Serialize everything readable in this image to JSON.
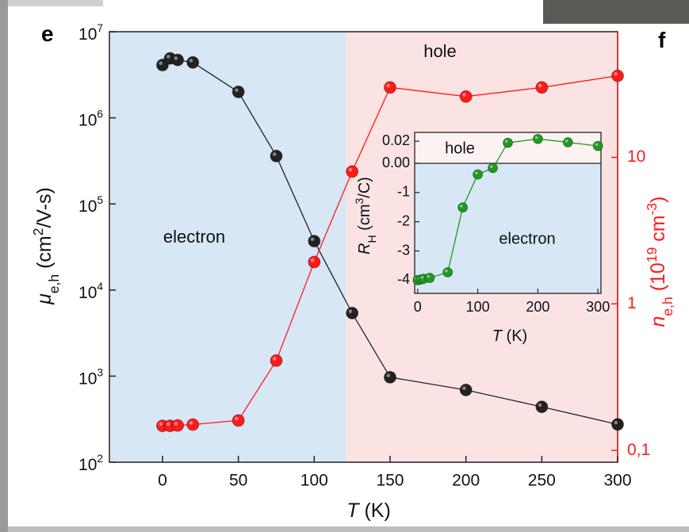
{
  "panel_left": "e",
  "panel_right": "f",
  "chart_data": [
    {
      "type": "line",
      "xlabel": [
        {
          "text": "T",
          "style": "italic"
        },
        {
          "text": " (K)",
          "style": "normal"
        }
      ],
      "ylabel": [
        {
          "text": "μ",
          "style": "italic"
        },
        {
          "text": "e,h",
          "style": "sub"
        },
        {
          "text": " (cm",
          "style": "normal"
        },
        {
          "text": "2",
          "style": "sup"
        },
        {
          "text": "/V-s)",
          "style": "normal"
        }
      ],
      "y2label": [
        {
          "text": "n",
          "style": "italic"
        },
        {
          "text": "e,h",
          "style": "sub"
        },
        {
          "text": " (10",
          "style": "normal"
        },
        {
          "text": "19",
          "style": "sup"
        },
        {
          "text": " cm",
          "style": "normal"
        },
        {
          "text": "-3",
          "style": "sup"
        },
        {
          "text": ")",
          "style": "normal"
        }
      ],
      "regions": [
        {
          "label": "electron",
          "color": "#d7e7f6"
        },
        {
          "label": "hole",
          "color": "#fce3e3"
        }
      ],
      "boundary": 121,
      "x": [
        0,
        5,
        10,
        20,
        50,
        75,
        100,
        125,
        150,
        200,
        250,
        300
      ],
      "xlim": [
        -35,
        300
      ],
      "xticks": [
        0,
        50,
        100,
        150,
        200,
        250,
        300
      ],
      "ylim": [
        100,
        10000000
      ],
      "log_y": true,
      "yticks": [
        {
          "value": 100,
          "label": "10",
          "power": "2"
        },
        {
          "value": 1000,
          "label": "10",
          "power": "3"
        },
        {
          "value": 10000,
          "label": "10",
          "power": "4"
        },
        {
          "value": 100000,
          "label": "10",
          "power": "5"
        },
        {
          "value": 1000000,
          "label": "10",
          "power": "6"
        },
        {
          "value": 10000000,
          "label": "10",
          "power": "7"
        }
      ],
      "y2lim": [
        0.083,
        72
      ],
      "log_y2": true,
      "y2ticks": [
        {
          "value": 0.1,
          "label": "0,1"
        },
        1,
        10
      ],
      "y2color": "#ff1a1a",
      "series": [
        {
          "color": "#222222",
          "values": [
            4100000,
            4900000,
            4700000,
            4400000,
            2000000,
            360000,
            37000,
            5400,
            970,
            690,
            440,
            275
          ]
        },
        {
          "color": "#ff1a1a",
          "axis": "y2",
          "values": [
            0.147,
            0.147,
            0.148,
            0.15,
            0.16,
            0.41,
            1.93,
            8.0,
            30,
            26,
            30,
            36
          ]
        }
      ]
    },
    {
      "type": "line",
      "xlabel": [
        {
          "text": "T",
          "style": "italic"
        },
        {
          "text": " (K)",
          "style": "normal"
        }
      ],
      "ylabel": [
        {
          "text": "R",
          "style": "italic"
        },
        {
          "text": "H",
          "style": "sub"
        },
        {
          "text": " (cm",
          "style": "normal"
        },
        {
          "text": "3",
          "style": "sup"
        },
        {
          "text": "/C)",
          "style": "normal"
        }
      ],
      "regions": [
        {
          "label": "hole",
          "color": "#fdf2f2"
        },
        {
          "label": "electron",
          "color": "#d7e7f6"
        }
      ],
      "x": [
        0,
        5,
        10,
        20,
        50,
        75,
        100,
        125,
        150,
        200,
        250,
        300
      ],
      "xlim": [
        -5,
        305
      ],
      "xticks": [
        0,
        100,
        200,
        300
      ],
      "ylim": [
        -4.45,
        0
      ],
      "ylim_upper": [
        0,
        0.028
      ],
      "yticks": [
        {
          "value": 0.02,
          "label": "0.02"
        },
        {
          "value": 0,
          "label": "0.00"
        },
        -1,
        -2,
        -3,
        -4
      ],
      "series": [
        {
          "color": "#1f9a1f",
          "values": [
            -4.0,
            -3.98,
            -3.95,
            -3.92,
            -3.73,
            -1.51,
            -0.38,
            -0.16,
            0.0186,
            0.0221,
            0.019,
            0.0157
          ]
        }
      ]
    }
  ]
}
